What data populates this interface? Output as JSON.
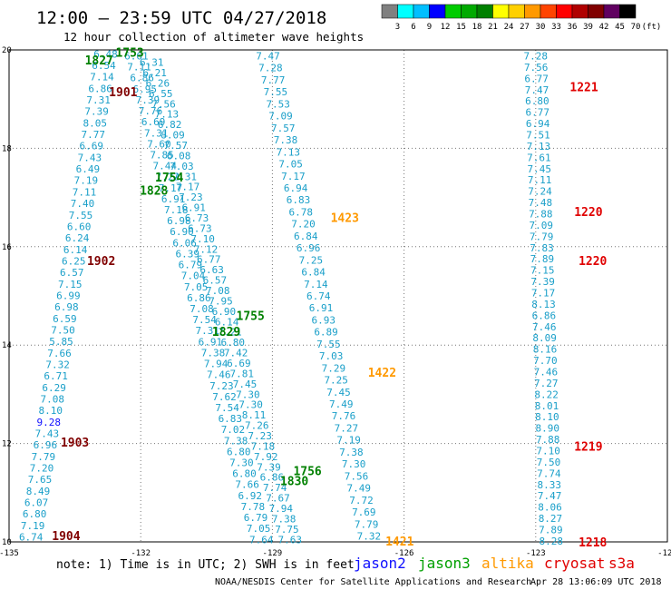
{
  "header": {
    "title": "12:00 — 23:59 UTC 04/27/2018",
    "subtitle": "12 hour collection of altimeter wave heights"
  },
  "colorbar": {
    "labels": [
      "3",
      "6",
      "9",
      "12",
      "15",
      "18",
      "21",
      "24",
      "27",
      "30",
      "33",
      "36",
      "39",
      "42",
      "45",
      "70",
      "(ft)"
    ],
    "colors": [
      "#808080",
      "#00ffff",
      "#00bfff",
      "#0000ff",
      "#00cc00",
      "#00aa00",
      "#008000",
      "#ffff00",
      "#ffd000",
      "#ff9900",
      "#ff4400",
      "#ff0000",
      "#b00000",
      "#800000",
      "#600060",
      "#000000"
    ]
  },
  "footer": {
    "note": "note: 1) Time is in UTC; 2) SWH is in feet",
    "credit": "NOAA/NESDIS Center for Satellite Applications and Research",
    "timestamp": "Apr 28 13:06:09 UTC 2018",
    "legend": [
      {
        "name": "jason2",
        "color": "#1010ff"
      },
      {
        "name": "jason3",
        "color": "#00a000"
      },
      {
        "name": "altika",
        "color": "#ff9900"
      },
      {
        "name": "cryosat",
        "color": "#e00000"
      },
      {
        "name": "s3a",
        "color": "#e00000"
      }
    ]
  },
  "chart_data": {
    "type": "scatter",
    "title": "12:00 — 23:59 UTC 04/27/2018",
    "subtitle": "12 hour collection of altimeter wave heights",
    "xlim": [
      -135,
      -120
    ],
    "ylim": [
      10,
      20
    ],
    "x_ticks": [
      -135,
      -132,
      -129,
      -126,
      -123,
      -120
    ],
    "x_tick_labels": [
      "-135",
      "-132",
      "-129",
      "-126",
      "-123",
      "-120"
    ],
    "y_ticks": [
      10,
      12,
      14,
      16,
      18,
      20
    ],
    "y_tick_labels": [
      "10",
      "12",
      "14",
      "16",
      "18",
      "20"
    ],
    "grid": true,
    "value_color": "#1a9fc9",
    "pass_labels": [
      {
        "text": "1753",
        "lon": -132.25,
        "lat": 19.95,
        "color": "#008000"
      },
      {
        "text": "1827",
        "lon": -132.95,
        "lat": 19.8,
        "color": "#008000"
      },
      {
        "text": "1901",
        "lon": -132.4,
        "lat": 19.15,
        "color": "#800000"
      },
      {
        "text": "1754",
        "lon": -131.35,
        "lat": 17.42,
        "color": "#008000"
      },
      {
        "text": "1828",
        "lon": -131.7,
        "lat": 17.15,
        "color": "#008000"
      },
      {
        "text": "1902",
        "lon": -132.9,
        "lat": 15.72,
        "color": "#800000"
      },
      {
        "text": "1755",
        "lon": -129.5,
        "lat": 14.6,
        "color": "#008000"
      },
      {
        "text": "1829",
        "lon": -130.05,
        "lat": 14.28,
        "color": "#008000"
      },
      {
        "text": "1903",
        "lon": -133.5,
        "lat": 12.03,
        "color": "#800000"
      },
      {
        "text": "1756",
        "lon": -128.2,
        "lat": 11.45,
        "color": "#008000"
      },
      {
        "text": "1830",
        "lon": -128.5,
        "lat": 11.25,
        "color": "#008000"
      },
      {
        "text": "1904",
        "lon": -133.7,
        "lat": 10.13,
        "color": "#800000"
      },
      {
        "text": "1423",
        "lon": -127.35,
        "lat": 16.6,
        "color": "#ff9900"
      },
      {
        "text": "1422",
        "lon": -126.5,
        "lat": 13.45,
        "color": "#ff9900"
      },
      {
        "text": "1421",
        "lon": -126.1,
        "lat": 10.02,
        "color": "#ff9900"
      },
      {
        "text": "1221",
        "lon": -121.9,
        "lat": 19.25,
        "color": "#e00000"
      },
      {
        "text": "1220",
        "lon": -121.8,
        "lat": 16.72,
        "color": "#e00000"
      },
      {
        "text": "1220",
        "lon": -121.7,
        "lat": 15.72,
        "color": "#e00000"
      },
      {
        "text": "1219",
        "lon": -121.8,
        "lat": 11.95,
        "color": "#e00000"
      },
      {
        "text": "1218",
        "lon": -121.7,
        "lat": 10.0,
        "color": "#e00000"
      }
    ],
    "tracks": [
      {
        "name": "track-A",
        "start": [
          -134.5,
          10.1
        ],
        "end": [
          -132.8,
          19.92
        ],
        "values": [
          "6.74",
          "7.19",
          "6.80",
          "6.07",
          "8.49",
          "7.65",
          "7.20",
          "7.79",
          "6.96",
          "7.43",
          "9.28",
          "8.10",
          "7.08",
          "6.29",
          "6.71",
          "7.32",
          "7.66",
          "5.85",
          "7.50",
          "6.59",
          "6.98",
          "6.99",
          "7.15",
          "6.57",
          "6.25",
          "6.14",
          "6.24",
          "6.60",
          "7.55",
          "7.40",
          "7.11",
          "7.19",
          "6.49",
          "7.43",
          "6.69",
          "7.77",
          "8.05",
          "7.39",
          "7.31",
          "6.86",
          "7.14",
          "6.54",
          "6.48"
        ]
      },
      {
        "name": "track-B",
        "start": [
          -129.25,
          10.05
        ],
        "end": [
          -132.1,
          19.88
        ],
        "values": [
          "7.64",
          "7.05",
          "6.79",
          "7.78",
          "6.92",
          "7.66",
          "6.80",
          "7.30",
          "6.80",
          "7.38",
          "7.02",
          "6.83",
          "7.54",
          "7.62",
          "7.23",
          "7.46",
          "7.94",
          "7.38",
          "6.91",
          "7.31",
          "7.54",
          "7.08",
          "6.86",
          "7.05",
          "7.04",
          "6.79",
          "6.39",
          "6.06",
          "6.90",
          "6.98",
          "7.18",
          "6.91",
          "7.17",
          "7.22",
          "7.44",
          "7.85",
          "7.60",
          "7.31",
          "6.69",
          "7.76",
          "7.39",
          "6.95",
          "6.86",
          "7.11",
          "6.61"
        ]
      },
      {
        "name": "track-C",
        "start": [
          -128.6,
          10.05
        ],
        "end": [
          -131.75,
          19.75
        ],
        "values": [
          "7.63",
          "7.75",
          "7.38",
          "7.94",
          "7.67",
          "7.74",
          "6.86",
          "7.39",
          "7.92",
          "7.18",
          "7.23",
          "7.26",
          "8.11",
          "7.30",
          "7.30",
          "7.45",
          "7.81",
          "6.69",
          "7.42",
          "6.80",
          "7.21",
          "6.14",
          "6.90",
          "7.95",
          "7.08",
          "6.57",
          "6.63",
          "6.77",
          "7.12",
          "7.10",
          "6.73",
          "6.73",
          "6.91",
          "7.23",
          "7.17",
          "7.31",
          "7.03",
          "6.08",
          "7.57",
          "8.09",
          "6.82",
          "7.13",
          "7.56",
          "6.55",
          "6.26",
          "6.21",
          "6.31"
        ]
      },
      {
        "name": "track-D",
        "start": [
          -126.8,
          10.12
        ],
        "end": [
          -129.1,
          19.88
        ],
        "values": [
          "7.32",
          "7.79",
          "7.69",
          "7.72",
          "7.49",
          "7.56",
          "7.30",
          "7.38",
          "7.19",
          "7.27",
          "7.76",
          "7.49",
          "7.45",
          "7.25",
          "7.29",
          "7.03",
          "7.55",
          "6.89",
          "6.93",
          "6.91",
          "6.74",
          "7.14",
          "6.84",
          "7.25",
          "6.96",
          "6.84",
          "7.20",
          "6.78",
          "6.83",
          "6.94",
          "7.17",
          "7.05",
          "7.13",
          "7.38",
          "7.57",
          "7.09",
          "7.53",
          "7.55",
          "7.77",
          "7.28",
          "7.47"
        ]
      },
      {
        "name": "track-E",
        "start": [
          -122.65,
          10.02
        ],
        "end": [
          -123.0,
          19.88
        ],
        "values": [
          "8.28",
          "7.89",
          "8.27",
          "8.06",
          "7.47",
          "8.33",
          "7.74",
          "7.50",
          "7.10",
          "7.88",
          "8.90",
          "8.10",
          "8.01",
          "8.22",
          "7.27",
          "7.46",
          "7.70",
          "8.16",
          "8.09",
          "7.46",
          "6.86",
          "8.13",
          "7.17",
          "7.39",
          "7.15",
          "7.89",
          "7.83",
          "7.79",
          "7.09",
          "7.88",
          "7.48",
          "7.24",
          "7.11",
          "7.45",
          "7.61",
          "7.13",
          "7.51",
          "6.94",
          "6.77",
          "6.80",
          "7.47",
          "6.77",
          "7.56",
          "7.28"
        ]
      }
    ]
  }
}
